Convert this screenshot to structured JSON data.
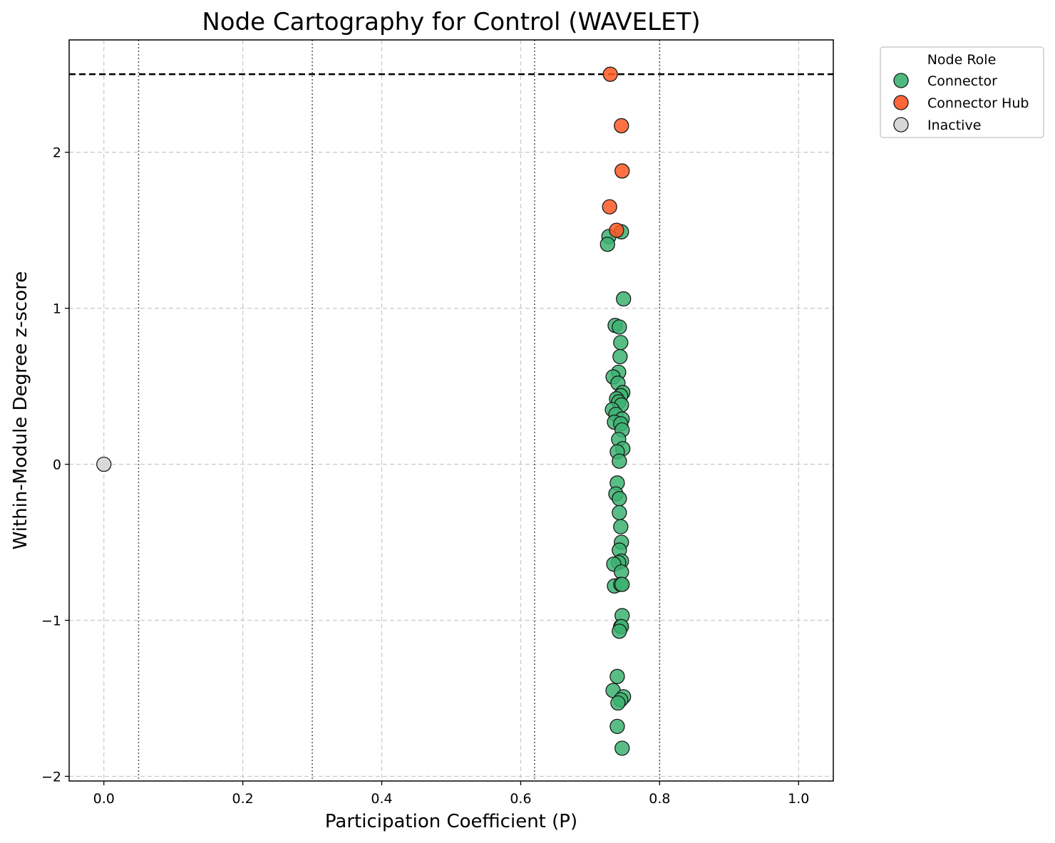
{
  "chart_data": {
    "type": "scatter",
    "title": "Node Cartography for Control (WAVELET)",
    "xlabel": "Participation Coefficient (P)",
    "ylabel": "Within-Module Degree z-score",
    "xlim": [
      -0.05,
      1.05
    ],
    "ylim": [
      -2.03,
      2.72
    ],
    "x_ticks": [
      0.0,
      0.2,
      0.4,
      0.6,
      0.8,
      1.0
    ],
    "x_tick_labels": [
      "0.0",
      "0.2",
      "0.4",
      "0.6",
      "0.8",
      "1.0"
    ],
    "y_ticks": [
      -2,
      -1,
      0,
      1,
      2
    ],
    "y_tick_labels": [
      "−2",
      "−1",
      "0",
      "1",
      "2"
    ],
    "grid": true,
    "hub_threshold_z": 2.5,
    "role_boundaries_p": [
      0.05,
      0.3,
      0.62,
      0.8
    ],
    "legend": {
      "title": "Node Role",
      "placement": "outside top-right",
      "entries": [
        {
          "label": "Connector",
          "color": "#3cb371"
        },
        {
          "label": "Connector Hub",
          "color": "#ff5722"
        },
        {
          "label": "Inactive",
          "color": "#d3d3d3"
        }
      ]
    },
    "series": [
      {
        "name": "Connector",
        "color": "#3cb371",
        "points": [
          [
            0.745,
            1.49
          ],
          [
            0.727,
            1.46
          ],
          [
            0.725,
            1.41
          ],
          [
            0.748,
            1.06
          ],
          [
            0.736,
            0.89
          ],
          [
            0.742,
            0.88
          ],
          [
            0.744,
            0.78
          ],
          [
            0.743,
            0.69
          ],
          [
            0.741,
            0.59
          ],
          [
            0.733,
            0.56
          ],
          [
            0.74,
            0.52
          ],
          [
            0.747,
            0.46
          ],
          [
            0.744,
            0.44
          ],
          [
            0.738,
            0.42
          ],
          [
            0.741,
            0.4
          ],
          [
            0.745,
            0.38
          ],
          [
            0.732,
            0.35
          ],
          [
            0.737,
            0.32
          ],
          [
            0.746,
            0.29
          ],
          [
            0.735,
            0.27
          ],
          [
            0.744,
            0.26
          ],
          [
            0.746,
            0.22
          ],
          [
            0.741,
            0.16
          ],
          [
            0.747,
            0.1
          ],
          [
            0.739,
            0.08
          ],
          [
            0.742,
            0.02
          ],
          [
            0.739,
            -0.12
          ],
          [
            0.737,
            -0.19
          ],
          [
            0.742,
            -0.22
          ],
          [
            0.742,
            -0.31
          ],
          [
            0.744,
            -0.4
          ],
          [
            0.745,
            -0.5
          ],
          [
            0.742,
            -0.55
          ],
          [
            0.745,
            -0.62
          ],
          [
            0.741,
            -0.63
          ],
          [
            0.734,
            -0.64
          ],
          [
            0.745,
            -0.69
          ],
          [
            0.735,
            -0.78
          ],
          [
            0.744,
            -0.77
          ],
          [
            0.746,
            -0.77
          ],
          [
            0.746,
            -0.97
          ],
          [
            0.744,
            -1.04
          ],
          [
            0.745,
            -1.04
          ],
          [
            0.742,
            -1.07
          ],
          [
            0.739,
            -1.36
          ],
          [
            0.733,
            -1.45
          ],
          [
            0.748,
            -1.49
          ],
          [
            0.744,
            -1.51
          ],
          [
            0.74,
            -1.53
          ],
          [
            0.739,
            -1.68
          ],
          [
            0.746,
            -1.82
          ]
        ]
      },
      {
        "name": "Connector Hub",
        "color": "#ff5722",
        "points": [
          [
            0.729,
            2.5
          ],
          [
            0.745,
            2.17
          ],
          [
            0.746,
            1.88
          ],
          [
            0.728,
            1.65
          ],
          [
            0.738,
            1.5
          ]
        ]
      },
      {
        "name": "Inactive",
        "color": "#d3d3d3",
        "points": [
          [
            0.0,
            0.0
          ]
        ]
      }
    ]
  }
}
